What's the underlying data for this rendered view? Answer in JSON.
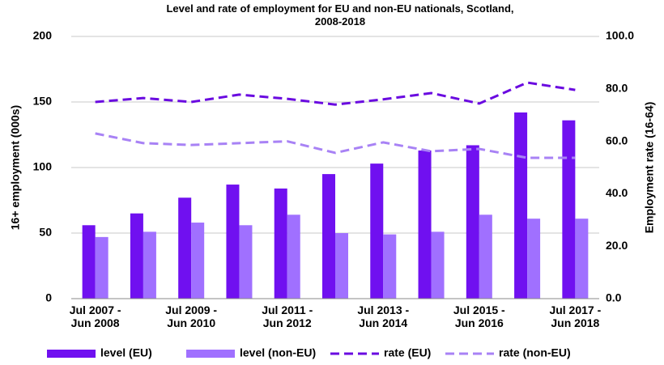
{
  "chart_data": {
    "type": "bar-line",
    "title": "Level and rate of employment for EU and non-EU nationals, Scotland,\n2008-2018",
    "ylabel": "16+ employment (000s)",
    "y2label": "Employment rate (16-64)",
    "categories": [
      "Jul 2007 -\nJun 2008",
      null,
      "Jul 2009 -\nJun 2010",
      null,
      "Jul 2011 -\nJun 2012",
      null,
      "Jul 2013 -\nJun 2014",
      null,
      "Jul 2015 -\nJun 2016",
      null,
      "Jul 2017 -\nJun 2018"
    ],
    "ylim": [
      0,
      200
    ],
    "yticks": [
      0,
      50,
      100,
      150,
      200
    ],
    "y2lim": [
      0,
      100
    ],
    "y2ticks": [
      {
        "value": 0,
        "label": "0.0"
      },
      {
        "value": 20,
        "label": "20.0"
      },
      {
        "value": 40,
        "label": "40.0"
      },
      {
        "value": 60,
        "label": "60.0"
      },
      {
        "value": 80,
        "label": "80.0"
      },
      {
        "value": 100,
        "label": "100.0"
      }
    ],
    "grid": true,
    "legend": "bottom",
    "series": [
      {
        "name": "level (EU)",
        "type": "bar",
        "color": "#7010f0",
        "values": [
          56,
          65,
          77,
          87,
          84,
          95,
          103,
          113,
          117,
          142,
          136
        ]
      },
      {
        "name": "level (non-EU)",
        "type": "bar",
        "color": "#a070ff",
        "values": [
          47,
          51,
          58,
          56,
          64,
          50,
          49,
          51,
          64,
          61,
          61
        ]
      },
      {
        "name": "rate (EU)",
        "type": "line",
        "axis": "y2",
        "dashed": true,
        "color": "#6a0ae0",
        "values": [
          75,
          76.5,
          75,
          77.8,
          76.2,
          74,
          76,
          78.4,
          74.4,
          82.4,
          79.6
        ]
      },
      {
        "name": "rate (non-EU)",
        "type": "line",
        "axis": "y2",
        "dashed": true,
        "color": "#a882f5",
        "values": [
          63,
          59.3,
          58.6,
          59.3,
          60,
          55.6,
          59.6,
          56.2,
          57.1,
          53.7,
          53.7
        ]
      }
    ]
  }
}
